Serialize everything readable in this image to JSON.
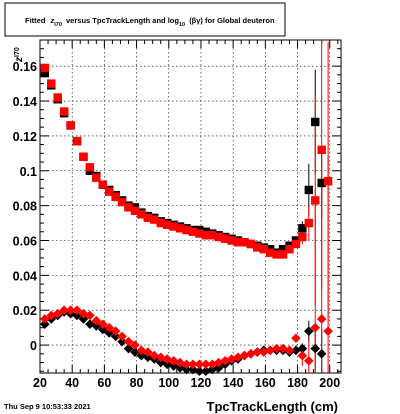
{
  "chart_data": {
    "type": "scatter",
    "title_parts": {
      "prefix": "Fitted",
      "z": "z",
      "z_sub": "I70",
      "mid": "versus TpcTrackLength and log",
      "log_sub": "10",
      "paren": "(βγ) for Global deuteron"
    },
    "ylabel_main": "z",
    "ylabel_sub": "I70",
    "xlabel": "TpcTrackLength (cm)",
    "footer": "Thu Sep  9 10:53:33 2021",
    "xlim": [
      20,
      207
    ],
    "ylim": [
      -0.016,
      0.175
    ],
    "grid": true,
    "xticks": [
      20,
      40,
      60,
      80,
      100,
      120,
      140,
      160,
      180,
      200
    ],
    "xtick_labels": [
      "20",
      "40",
      "60",
      "80",
      "100",
      "120",
      "140",
      "160",
      "180",
      "200"
    ],
    "yticks": [
      0,
      0.02,
      0.04,
      0.06,
      0.08,
      0.1,
      0.12,
      0.14,
      0.16
    ],
    "ytick_labels": [
      "0",
      "0.02",
      "0.04",
      "0.06",
      "0.08",
      "0.1",
      "0.12",
      "0.14",
      "0.16"
    ],
    "series": [
      {
        "color": "#000000",
        "marker": "square",
        "x": [
          23,
          27,
          31,
          35,
          39,
          43,
          47,
          51,
          55,
          59,
          63,
          67,
          71,
          75,
          79,
          83,
          87,
          91,
          95,
          99,
          103,
          107,
          111,
          115,
          119,
          123,
          127,
          131,
          135,
          139,
          143,
          147,
          151,
          155,
          159,
          163,
          167,
          171,
          175,
          179,
          183,
          187,
          191,
          195
        ],
        "y": [
          0.156,
          0.149,
          0.141,
          0.133,
          0.126,
          0.117,
          0.108,
          0.1,
          0.097,
          0.092,
          0.089,
          0.086,
          0.083,
          0.08,
          0.079,
          0.076,
          0.074,
          0.073,
          0.071,
          0.07,
          0.069,
          0.068,
          0.067,
          0.066,
          0.066,
          0.065,
          0.064,
          0.063,
          0.062,
          0.061,
          0.06,
          0.059,
          0.058,
          0.057,
          0.056,
          0.055,
          0.053,
          0.055,
          0.057,
          0.06,
          0.067,
          0.089,
          0.128,
          0.093
        ],
        "err": [
          0,
          0,
          0,
          0,
          0,
          0,
          0,
          0,
          0,
          0,
          0,
          0,
          0,
          0,
          0,
          0,
          0,
          0,
          0,
          0,
          0,
          0,
          0,
          0,
          0,
          0,
          0,
          0,
          0,
          0,
          0,
          0,
          0,
          0,
          0,
          0,
          0,
          0,
          0,
          0,
          0.004,
          0.015,
          0.03,
          0.02
        ]
      },
      {
        "color": "#ff0000",
        "marker": "square",
        "x": [
          23,
          27,
          31,
          35,
          39,
          43,
          47,
          51,
          55,
          59,
          63,
          67,
          71,
          75,
          79,
          83,
          87,
          91,
          95,
          99,
          103,
          107,
          111,
          115,
          119,
          123,
          127,
          131,
          135,
          139,
          143,
          147,
          151,
          155,
          159,
          163,
          167,
          171,
          175,
          179,
          183,
          187,
          191,
          195,
          199
        ],
        "y": [
          0.159,
          0.15,
          0.142,
          0.134,
          0.126,
          0.117,
          0.108,
          0.102,
          0.096,
          0.092,
          0.088,
          0.085,
          0.082,
          0.079,
          0.077,
          0.075,
          0.073,
          0.072,
          0.07,
          0.069,
          0.068,
          0.067,
          0.066,
          0.065,
          0.064,
          0.063,
          0.063,
          0.062,
          0.061,
          0.06,
          0.059,
          0.059,
          0.058,
          0.056,
          0.055,
          0.053,
          0.052,
          0.052,
          0.055,
          0.058,
          0.062,
          0.07,
          0.083,
          0.112,
          0.094
        ],
        "err": [
          0,
          0,
          0,
          0,
          0,
          0,
          0,
          0,
          0,
          0,
          0,
          0,
          0,
          0,
          0,
          0,
          0,
          0,
          0,
          0,
          0,
          0,
          0,
          0,
          0,
          0,
          0,
          0,
          0,
          0,
          0,
          0,
          0,
          0,
          0,
          0,
          0,
          0,
          0,
          0.002,
          0.004,
          0.01,
          0.06,
          0.08,
          0.08
        ]
      },
      {
        "color": "#000000",
        "marker": "circle",
        "x": [
          23,
          27,
          31,
          35,
          39,
          43,
          47,
          51,
          55,
          59,
          63,
          67,
          71,
          75,
          79,
          83,
          87,
          91,
          95,
          99,
          103,
          107,
          111,
          115,
          119,
          123,
          127,
          131,
          135,
          139,
          143,
          147,
          151,
          155,
          159,
          163,
          167,
          171,
          175,
          179,
          183,
          187,
          191,
          195
        ],
        "y": [
          0.012,
          0.015,
          0.017,
          0.019,
          0.018,
          0.017,
          0.015,
          0.012,
          0.011,
          0.009,
          0.007,
          0.005,
          0.002,
          -0.002,
          -0.004,
          -0.006,
          -0.007,
          -0.008,
          -0.01,
          -0.011,
          -0.012,
          -0.013,
          -0.014,
          -0.014,
          -0.015,
          -0.015,
          -0.014,
          -0.013,
          -0.011,
          -0.009,
          -0.008,
          -0.006,
          -0.005,
          -0.004,
          -0.003,
          -0.003,
          -0.003,
          -0.003,
          -0.004,
          -0.003,
          -0.002,
          0.008,
          -0.002,
          -0.005
        ],
        "err": [
          0,
          0,
          0,
          0,
          0,
          0,
          0,
          0,
          0,
          0,
          0,
          0,
          0,
          0,
          0,
          0,
          0,
          0,
          0,
          0,
          0,
          0,
          0,
          0,
          0,
          0,
          0,
          0,
          0,
          0,
          0,
          0,
          0,
          0,
          0,
          0,
          0,
          0,
          0,
          0,
          0.003,
          0.006,
          0.012,
          0.014
        ]
      },
      {
        "color": "#ff0000",
        "marker": "circle",
        "x": [
          23,
          27,
          31,
          35,
          39,
          43,
          47,
          51,
          55,
          59,
          63,
          67,
          71,
          75,
          79,
          83,
          87,
          91,
          95,
          99,
          103,
          107,
          111,
          115,
          119,
          123,
          127,
          131,
          135,
          139,
          143,
          147,
          151,
          155,
          159,
          163,
          167,
          171,
          175,
          179,
          183,
          187,
          191,
          195,
          199
        ],
        "y": [
          0.015,
          0.017,
          0.018,
          0.02,
          0.02,
          0.02,
          0.018,
          0.017,
          0.014,
          0.012,
          0.01,
          0.008,
          0.005,
          0.002,
          0.0,
          -0.003,
          -0.004,
          -0.006,
          -0.007,
          -0.008,
          -0.009,
          -0.01,
          -0.011,
          -0.011,
          -0.011,
          -0.011,
          -0.011,
          -0.01,
          -0.009,
          -0.008,
          -0.007,
          -0.006,
          -0.005,
          -0.004,
          -0.004,
          -0.003,
          -0.002,
          -0.002,
          -0.003,
          0.004,
          -0.006,
          -0.009,
          0.01,
          0.015,
          0.008
        ],
        "err": [
          0,
          0,
          0,
          0,
          0,
          0,
          0,
          0,
          0,
          0,
          0,
          0,
          0,
          0,
          0,
          0,
          0,
          0,
          0,
          0,
          0,
          0,
          0,
          0,
          0,
          0,
          0,
          0,
          0,
          0,
          0,
          0,
          0,
          0,
          0,
          0,
          0,
          0,
          0,
          0.002,
          0.006,
          0.012,
          0.08,
          0.08,
          0.1
        ]
      }
    ]
  }
}
